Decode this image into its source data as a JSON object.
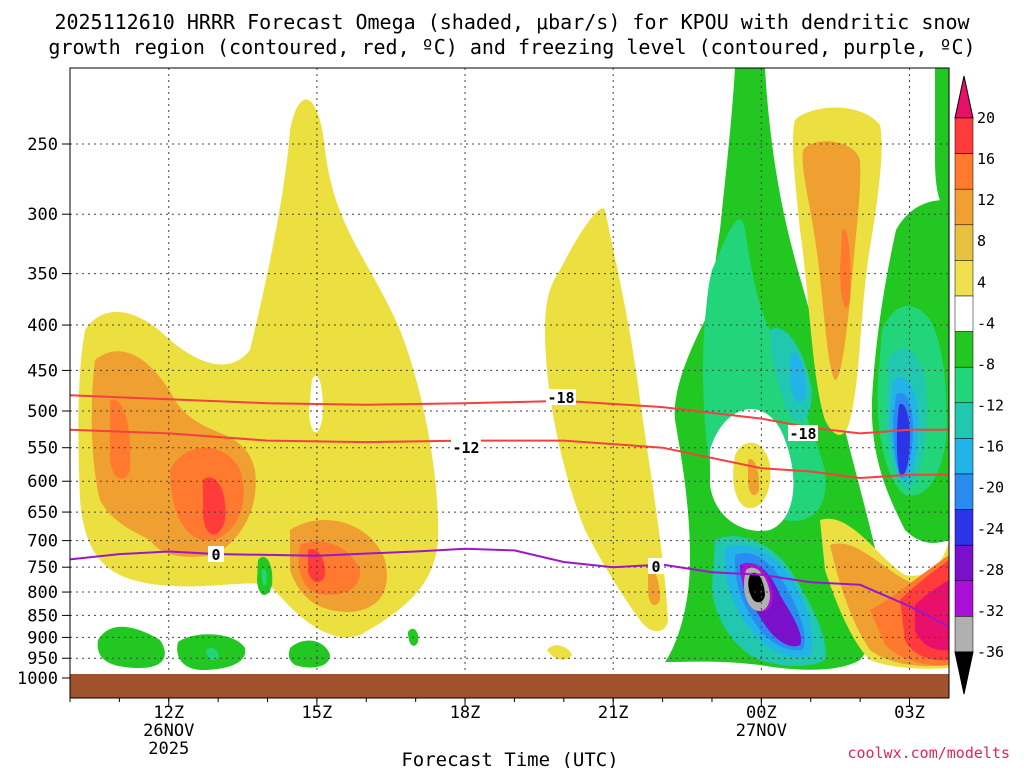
{
  "chart_data": {
    "type": "contour",
    "title_line1": "2025112610 HRRR Forecast Omega (shaded, μbar/s) for KPOU with dendritic snow",
    "title_line2": "growth region (contoured, red, ºC) and freezing level (contoured, purple, ºC)",
    "xlabel": "Forecast Time (UTC)",
    "credit": "coolwx.com/modelts",
    "x_range_hours": [
      10,
      27.8
    ],
    "y_levels_hpa": [
      "250",
      "300",
      "350",
      "400",
      "450",
      "500",
      "550",
      "600",
      "650",
      "700",
      "750",
      "800",
      "850",
      "900",
      "950",
      "1000"
    ],
    "x_ticks": [
      {
        "hour": 12,
        "line1": "12Z",
        "line2": "26NOV",
        "line3": "2025"
      },
      {
        "hour": 15,
        "line1": "15Z",
        "line2": "",
        "line3": ""
      },
      {
        "hour": 18,
        "line1": "18Z",
        "line2": "",
        "line3": ""
      },
      {
        "hour": 21,
        "line1": "21Z",
        "line2": "",
        "line3": ""
      },
      {
        "hour": 24,
        "line1": "00Z",
        "line2": "27NOV",
        "line3": ""
      },
      {
        "hour": 27,
        "line1": "03Z",
        "line2": "",
        "line3": ""
      }
    ],
    "colorbar": {
      "labels": [
        "20",
        "16",
        "12",
        "8",
        "4",
        "-4",
        "-8",
        "-12",
        "-16",
        "-20",
        "-24",
        "-28",
        "-32",
        "-36"
      ],
      "colors": [
        "#e8106a",
        "#ff3b3b",
        "#ff7a2e",
        "#f0a030",
        "#e8c040",
        "#f0e050",
        "#ffffff",
        "#22c722",
        "#22d47a",
        "#22c7b0",
        "#22b4e8",
        "#2a8cf0",
        "#2b34e8",
        "#7a10cc",
        "#aa10d8",
        "#b0b0b0",
        "#000000"
      ],
      "top_color": "#e8106a",
      "bottom_color": "#000000"
    },
    "contour_labels": {
      "dgz_upper": "-18",
      "dgz_lower": "-12",
      "freezing": "0"
    },
    "dgz_line_upper": [
      [
        10,
        480
      ],
      [
        12,
        485
      ],
      [
        14,
        490
      ],
      [
        16,
        492
      ],
      [
        18,
        490
      ],
      [
        20,
        487
      ],
      [
        22,
        495
      ],
      [
        24,
        510
      ],
      [
        25,
        522
      ],
      [
        26,
        530
      ],
      [
        27,
        525
      ],
      [
        27.8,
        525
      ]
    ],
    "dgz_line_lower": [
      [
        10,
        525
      ],
      [
        12,
        530
      ],
      [
        14,
        540
      ],
      [
        16,
        542
      ],
      [
        18,
        540
      ],
      [
        20,
        540
      ],
      [
        22,
        550
      ],
      [
        24,
        580
      ],
      [
        25,
        585
      ],
      [
        26,
        595
      ],
      [
        27,
        590
      ],
      [
        27.8,
        590
      ]
    ],
    "freezing_line": [
      [
        10,
        735
      ],
      [
        11,
        725
      ],
      [
        12,
        720
      ],
      [
        13,
        725
      ],
      [
        15,
        728
      ],
      [
        17,
        720
      ],
      [
        18,
        715
      ],
      [
        19,
        718
      ],
      [
        20,
        740
      ],
      [
        21,
        750
      ],
      [
        22,
        745
      ],
      [
        23,
        760
      ],
      [
        24,
        765
      ],
      [
        25,
        780
      ],
      [
        26,
        785
      ],
      [
        27,
        830
      ],
      [
        27.8,
        875
      ]
    ],
    "omega_regions": [
      {
        "name": "yellow-left",
        "level": "4"
      },
      {
        "name": "orange-left",
        "level": "8"
      },
      {
        "name": "red-left",
        "level": "16"
      },
      {
        "name": "green-lower-left",
        "level": "-4"
      },
      {
        "name": "yellow-center-plume",
        "level": "4"
      },
      {
        "name": "orange-center",
        "level": "8"
      },
      {
        "name": "red-center",
        "level": "16"
      },
      {
        "name": "yellow-21z-plume",
        "level": "4"
      },
      {
        "name": "green-00z-column",
        "level": "-4"
      },
      {
        "name": "teal-00z-column",
        "level": "-12"
      },
      {
        "name": "blue-00z-low",
        "level": "-20"
      },
      {
        "name": "purple-00z-low",
        "level": "-28"
      },
      {
        "name": "gray-black-core",
        "level": "-36"
      },
      {
        "name": "yellow-01z-plume",
        "level": "4"
      },
      {
        "name": "orange-01z-plume",
        "level": "8"
      },
      {
        "name": "green-03z-column",
        "level": "-4"
      },
      {
        "name": "blue-03z-core",
        "level": "-20"
      },
      {
        "name": "magenta-lower-right",
        "level": "20"
      }
    ]
  }
}
